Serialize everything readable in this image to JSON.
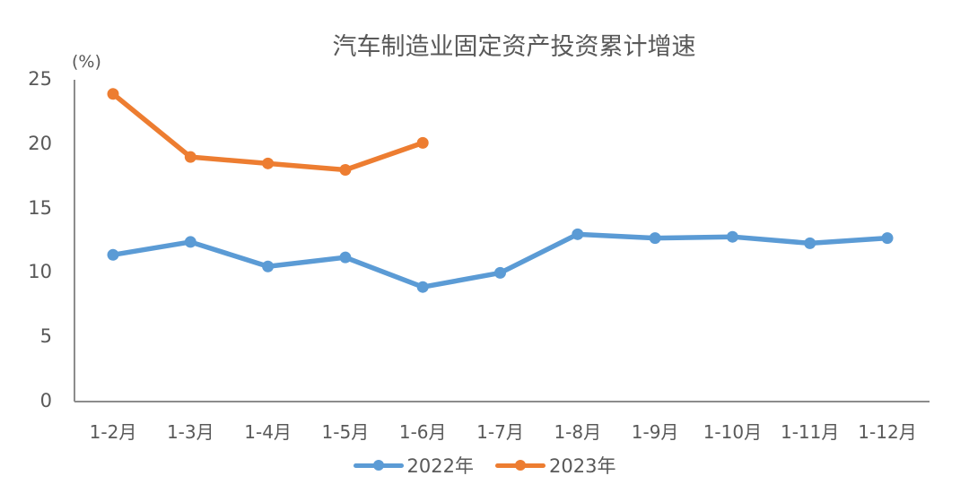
{
  "chart_data": {
    "type": "line",
    "title": "汽车制造业固定资产投资累计增速",
    "unit_label": "(%)",
    "xlabel": "",
    "ylabel": "%",
    "ylim": [
      0,
      25
    ],
    "yticks": [
      "0",
      "5",
      "10",
      "15",
      "20",
      "25"
    ],
    "categories": [
      "1-2月",
      "1-3月",
      "1-4月",
      "1-5月",
      "1-6月",
      "1-7月",
      "1-8月",
      "1-9月",
      "1-10月",
      "1-11月",
      "1-12月"
    ],
    "series": [
      {
        "name": "2022年",
        "color": "#5B9BD5",
        "values": [
          11.4,
          12.4,
          10.5,
          11.2,
          8.9,
          10.0,
          13.0,
          12.7,
          12.8,
          12.3,
          12.7
        ]
      },
      {
        "name": "2023年",
        "color": "#ED7D31",
        "values": [
          23.9,
          19.0,
          18.5,
          18.0,
          20.1,
          null,
          null,
          null,
          null,
          null,
          null
        ]
      }
    ],
    "grid": false,
    "legend_position": "bottom"
  }
}
